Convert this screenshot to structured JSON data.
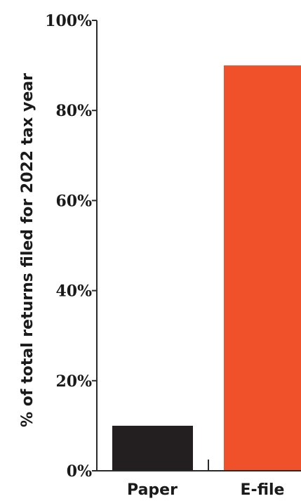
{
  "chart_data": {
    "type": "bar",
    "categories": [
      "Paper",
      "E-file"
    ],
    "values": [
      10,
      90
    ],
    "bar_colors": [
      "#231f20",
      "#f0502a"
    ],
    "ylabel": "% of total returns filed for 2022 tax year",
    "xlabel": "",
    "ylim": [
      0,
      100
    ],
    "yticks": [
      0,
      20,
      40,
      60,
      80,
      100
    ],
    "ytick_labels": [
      "0%",
      "20%",
      "40%",
      "60%",
      "80%",
      "100%"
    ],
    "grid": false,
    "legend": "none"
  }
}
